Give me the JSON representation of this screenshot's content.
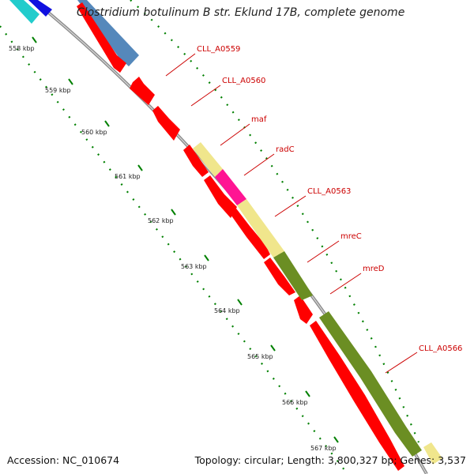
{
  "header": {
    "title": "Clostridium botulinum B str. Eklund 17B, complete genome"
  },
  "footer": {
    "accession": "Accession: NC_010674",
    "summary": "Topology: circular; Length: 3,800,327 bp; Genes: 3,537"
  },
  "ticks": [
    {
      "label": "558 kbp"
    },
    {
      "label": "559 kbp"
    },
    {
      "label": "560 kbp"
    },
    {
      "label": "561 kbp"
    },
    {
      "label": "562 kbp"
    },
    {
      "label": "563 kbp"
    },
    {
      "label": "564 kbp"
    },
    {
      "label": "565 kbp"
    },
    {
      "label": "566 kbp"
    },
    {
      "label": "567 kbp"
    }
  ],
  "gene_labels": [
    {
      "name": "CLL_A0559"
    },
    {
      "name": "CLL_A0560"
    },
    {
      "name": "maf"
    },
    {
      "name": "radC"
    },
    {
      "name": "CLL_A0563"
    },
    {
      "name": "mreC"
    },
    {
      "name": "mreD"
    },
    {
      "name": "CLL_A0566"
    }
  ],
  "colors": {
    "cds": "#ff0000",
    "cyan": "#22cccc",
    "blue": "#1010e0",
    "steel": "#5588bb",
    "khaki": "#f0e68c",
    "magenta": "#ff1493",
    "olive": "#6b8e23",
    "backbone": "#8c8c8c",
    "ruler": "#008000",
    "label": "#cc0000"
  }
}
